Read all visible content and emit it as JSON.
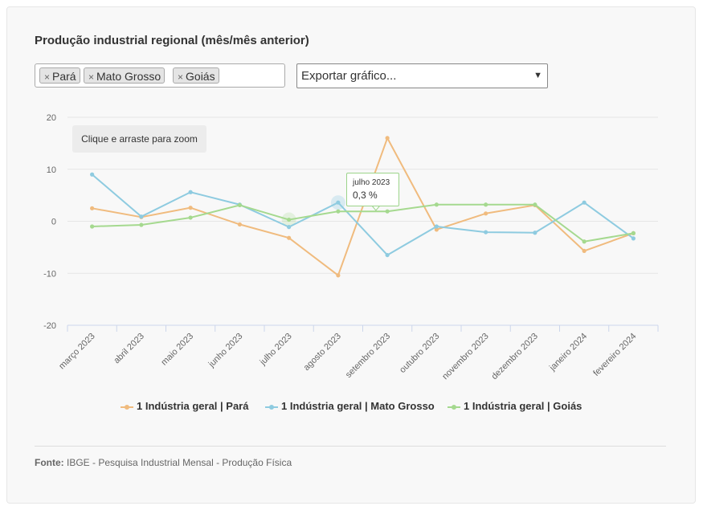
{
  "title": "Produção industrial regional (mês/mês anterior)",
  "filter_tags": [
    {
      "label": "Pará"
    },
    {
      "label": "Mato Grosso"
    },
    {
      "label": "Goiás"
    }
  ],
  "export_select": {
    "value": "Exportar gráfico..."
  },
  "zoom_hint": "Clique e arraste para zoom",
  "tooltip": {
    "period": "julho 2023",
    "value": "0,3 %"
  },
  "source": {
    "label": "Fonte:",
    "text": "IBGE - Pesquisa Industrial Mensal - Produção Física"
  },
  "chart_data": {
    "type": "line",
    "categories": [
      "março 2023",
      "abril 2023",
      "maio 2023",
      "junho 2023",
      "julho 2023",
      "agosto 2023",
      "setembro 2023",
      "outubro 2023",
      "novembro 2023",
      "dezembro 2023",
      "janeiro 2024",
      "fevereiro 2024"
    ],
    "series": [
      {
        "name": "1 Indústria geral | Pará",
        "color": "#f0bb7e",
        "values": [
          2.5,
          0.8,
          2.6,
          -0.6,
          -3.2,
          -10.4,
          16.0,
          -1.6,
          1.5,
          3.1,
          -5.7,
          -2.3
        ]
      },
      {
        "name": "1 Indústria geral | Mato Grosso",
        "color": "#8ecbe0",
        "values": [
          9.0,
          0.9,
          5.6,
          3.2,
          -1.1,
          3.6,
          -6.5,
          -1.0,
          -2.1,
          -2.2,
          3.6,
          -3.3
        ]
      },
      {
        "name": "1 Indústria geral | Goiás",
        "color": "#a5d98f",
        "values": [
          -1.0,
          -0.7,
          0.7,
          3.1,
          0.3,
          1.9,
          1.9,
          3.2,
          3.2,
          3.2,
          -3.9,
          -2.3
        ]
      }
    ],
    "y_ticks": [
      "20",
      "10",
      "0",
      "-10",
      "-20"
    ],
    "ylim": [
      -20,
      20
    ],
    "grid": true,
    "legend_position": "bottom-center",
    "highlight": {
      "category_index": 4
    }
  }
}
